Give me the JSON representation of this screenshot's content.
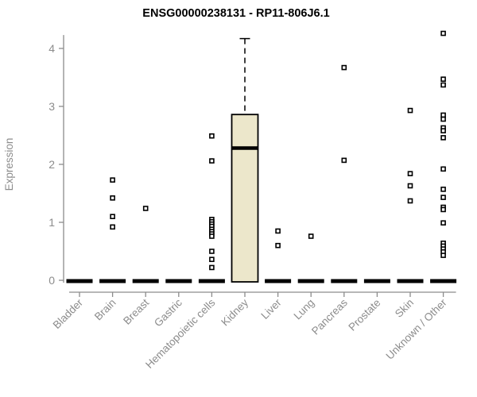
{
  "chart_data": {
    "type": "boxplot",
    "title": "ENSG00000238131 - RP11-806J6.1",
    "ylabel": "Expression",
    "xlabel": "",
    "ylim": [
      0,
      4.3
    ],
    "yticks": [
      0,
      1,
      2,
      3,
      4
    ],
    "grid": false,
    "legend": null,
    "categories": [
      "Bladder",
      "Brain",
      "Breast",
      "Gastric",
      "Hematopoietic cells",
      "Kidney",
      "Liver",
      "Lung",
      "Pancreas",
      "Prostate",
      "Skin",
      "Unknown / Other"
    ],
    "boxes": [
      {
        "category": "Bladder",
        "median": 0,
        "q1": 0,
        "q3": 0,
        "whisker_low": 0,
        "whisker_high": 0,
        "outliers": []
      },
      {
        "category": "Brain",
        "median": 0,
        "q1": 0,
        "q3": 0,
        "whisker_low": 0,
        "whisker_high": 0,
        "outliers": [
          1.73,
          1.42,
          1.1,
          0.92
        ]
      },
      {
        "category": "Breast",
        "median": 0,
        "q1": 0,
        "q3": 0,
        "whisker_low": 0,
        "whisker_high": 0,
        "outliers": [
          1.24
        ]
      },
      {
        "category": "Gastric",
        "median": 0,
        "q1": 0,
        "q3": 0,
        "whisker_low": 0,
        "whisker_high": 0,
        "outliers": []
      },
      {
        "category": "Hematopoietic cells",
        "median": 0,
        "q1": 0,
        "q3": 0,
        "whisker_low": 0,
        "whisker_high": 0,
        "outliers": [
          2.49,
          2.06,
          1.05,
          1.01,
          0.97,
          0.93,
          0.88,
          0.84,
          0.8,
          0.76,
          0.5,
          0.36,
          0.22
        ]
      },
      {
        "category": "Kidney",
        "median": 2.28,
        "q1": 0,
        "q3": 2.86,
        "whisker_low": 0,
        "whisker_high": 4.17,
        "outliers": []
      },
      {
        "category": "Liver",
        "median": 0,
        "q1": 0,
        "q3": 0,
        "whisker_low": 0,
        "whisker_high": 0,
        "outliers": [
          0.85,
          0.6
        ]
      },
      {
        "category": "Lung",
        "median": 0,
        "q1": 0,
        "q3": 0,
        "whisker_low": 0,
        "whisker_high": 0,
        "outliers": [
          0.76
        ]
      },
      {
        "category": "Pancreas",
        "median": 0,
        "q1": 0,
        "q3": 0,
        "whisker_low": 0,
        "whisker_high": 0,
        "outliers": [
          3.67,
          2.07
        ]
      },
      {
        "category": "Prostate",
        "median": 0,
        "q1": 0,
        "q3": 0,
        "whisker_low": 0,
        "whisker_high": 0,
        "outliers": []
      },
      {
        "category": "Skin",
        "median": 0,
        "q1": 0,
        "q3": 0,
        "whisker_low": 0,
        "whisker_high": 0,
        "outliers": [
          2.93,
          1.84,
          1.63,
          1.37
        ]
      },
      {
        "category": "Unknown / Other",
        "median": 0,
        "q1": 0,
        "q3": 0,
        "whisker_low": 0,
        "whisker_high": 0,
        "outliers": [
          4.26,
          3.47,
          3.37,
          2.85,
          2.78,
          2.63,
          2.58,
          2.46,
          1.92,
          1.57,
          1.43,
          1.26,
          1.22,
          0.99,
          0.64,
          0.59,
          0.54,
          0.49,
          0.43
        ]
      }
    ],
    "colors": {
      "box_fill": "#ece7cb",
      "box_border": "#000000",
      "median": "#000000",
      "collapsed_bar": "#000000",
      "outlier_fill": "#ffffff",
      "outlier_stroke": "#000000",
      "axis": "#8c8c8c",
      "tick_label": "#8c8c8c",
      "title": "#000000",
      "background": "#ffffff"
    }
  }
}
